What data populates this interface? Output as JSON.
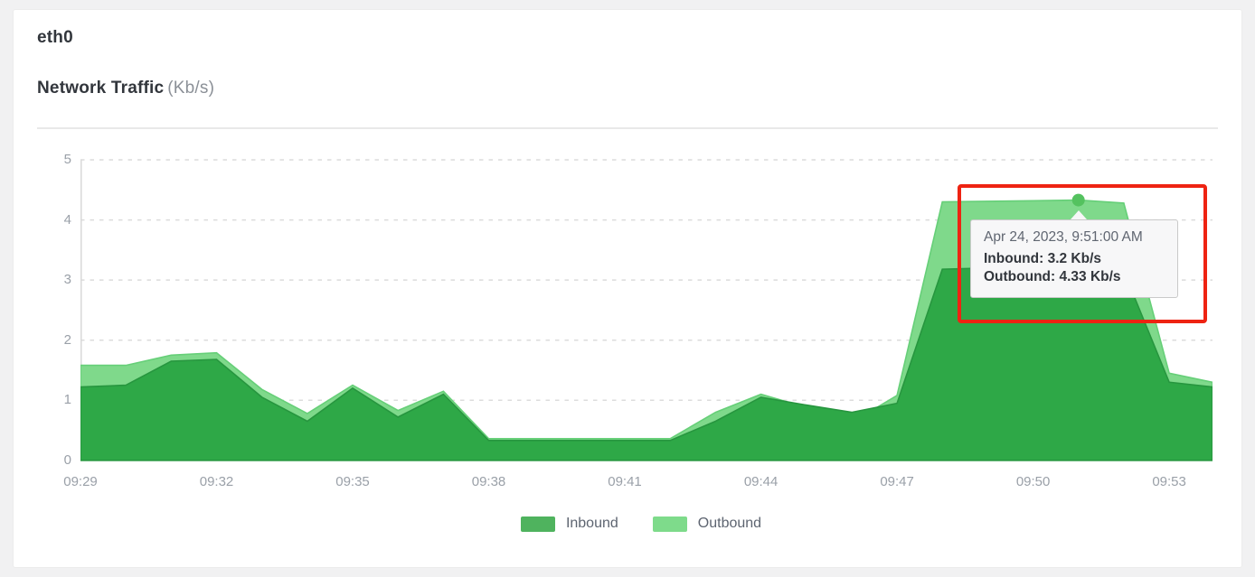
{
  "card": {
    "title": "eth0",
    "subtitle": "Network Traffic",
    "subtitle_unit": "(Kb/s)"
  },
  "chart_data": {
    "type": "area",
    "title": "Network Traffic (Kb/s)",
    "x": [
      "09:29",
      "09:30",
      "09:31",
      "09:32",
      "09:33",
      "09:34",
      "09:35",
      "09:36",
      "09:37",
      "09:38",
      "09:39",
      "09:40",
      "09:41",
      "09:42",
      "09:43",
      "09:44",
      "09:45",
      "09:46",
      "09:47",
      "09:48",
      "09:49",
      "09:50",
      "09:51",
      "09:52",
      "09:53",
      "09:54"
    ],
    "series": [
      {
        "name": "Inbound",
        "fill": "#2ea847",
        "edge": "#27963f",
        "swatch": "#4fb35e",
        "values": [
          1.22,
          1.25,
          1.65,
          1.68,
          1.05,
          0.65,
          1.2,
          0.72,
          1.1,
          0.33,
          0.33,
          0.33,
          0.33,
          0.33,
          0.65,
          1.05,
          0.92,
          0.8,
          0.95,
          3.18,
          3.2,
          3.22,
          3.2,
          3.15,
          1.3,
          1.22
        ]
      },
      {
        "name": "Outbound",
        "fill": "#7fd98b",
        "edge": "#66cf78",
        "swatch": "#7edb8b",
        "values": [
          1.58,
          1.58,
          1.75,
          1.79,
          1.18,
          0.78,
          1.25,
          0.83,
          1.15,
          0.36,
          0.36,
          0.36,
          0.36,
          0.36,
          0.8,
          1.1,
          0.88,
          0.63,
          1.08,
          4.3,
          4.31,
          4.32,
          4.33,
          4.28,
          1.45,
          1.3
        ]
      }
    ],
    "ylim": [
      0,
      5
    ],
    "yticks": [
      0,
      1,
      2,
      3,
      4,
      5
    ],
    "xticks": [
      "09:29",
      "09:32",
      "09:35",
      "09:38",
      "09:41",
      "09:44",
      "09:47",
      "09:50",
      "09:53"
    ],
    "grid": "horizontal-dashed",
    "grid_color": "#dcdcdc",
    "axis_color": "#d9d9d9",
    "legend_position": "bottom",
    "dot_color": "#54c25f"
  },
  "tooltip": {
    "title": "Apr 24, 2023, 9:51:00 AM",
    "lines": [
      "Inbound: 3.2 Kb/s",
      "Outbound: 4.33 Kb/s"
    ],
    "hover_point": {
      "x": "09:51",
      "inbound": 3.2,
      "outbound": 4.33
    }
  },
  "annotation": {
    "type": "highlight-box",
    "color": "#ee2312"
  }
}
